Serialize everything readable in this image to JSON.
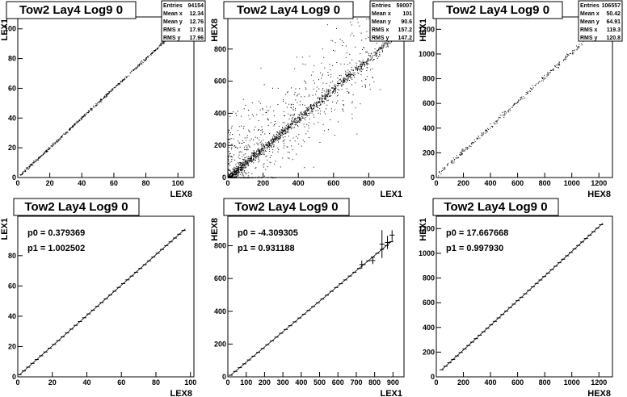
{
  "chart_data": [
    {
      "type": "scatter",
      "title": "Tow2 Lay4 Log9 0",
      "xlabel": "LEX8",
      "ylabel": "LEX1",
      "xlim": [
        0,
        110
      ],
      "ylim": [
        0,
        108
      ],
      "xticks": [
        0,
        20,
        40,
        60,
        80,
        100
      ],
      "yticks": [
        0,
        20,
        40,
        60,
        80,
        100
      ],
      "stats": [
        [
          "Entries",
          "94154"
        ],
        [
          "Mean x",
          "12.34"
        ],
        [
          "Mean y",
          "12.76"
        ],
        [
          "RMS x",
          "17.91"
        ],
        [
          "RMS y",
          "17.96"
        ]
      ],
      "trend": {
        "slope": 1.0,
        "intercept": 0.4,
        "x_min": 0,
        "x_max": 97,
        "spread": 0.5,
        "n": 500,
        "outliers": 0
      }
    },
    {
      "type": "scatter",
      "title": "Tow2 Lay4 Log9 0",
      "xlabel": "LEX1",
      "ylabel": "HEX8",
      "xlim": [
        0,
        1000
      ],
      "ylim": [
        0,
        1000
      ],
      "xticks": [
        0,
        200,
        400,
        600,
        800
      ],
      "yticks": [
        0,
        200,
        400,
        600,
        800
      ],
      "stats": [
        [
          "Entries",
          "59007"
        ],
        [
          "Mean x",
          "101"
        ],
        [
          "Mean y",
          "90.6"
        ],
        [
          "RMS x",
          "157.2"
        ],
        [
          "RMS y",
          "147.2"
        ]
      ],
      "trend": {
        "slope": 0.93,
        "intercept": -4,
        "x_min": 0,
        "x_max": 930,
        "spread": 15,
        "n": 1200,
        "outliers": 700
      }
    },
    {
      "type": "scatter",
      "title": "Tow2 Lay4 Log9 0",
      "xlabel": "HEX8",
      "ylabel": "HEX1",
      "xlim": [
        0,
        1300
      ],
      "ylim": [
        0,
        1300
      ],
      "xticks": [
        0,
        200,
        400,
        600,
        800,
        1000,
        1200
      ],
      "yticks": [
        0,
        200,
        400,
        600,
        800,
        1000,
        1200
      ],
      "stats": [
        [
          "Entries",
          "106557"
        ],
        [
          "Mean x",
          "50.42"
        ],
        [
          "Mean y",
          "64.91"
        ],
        [
          "RMS x",
          "119.3"
        ],
        [
          "RMS y",
          "120.8"
        ]
      ],
      "trend": {
        "slope": 1.0,
        "intercept": 18,
        "x_min": 10,
        "x_max": 1100,
        "spread": 10,
        "n": 260,
        "outliers": 0
      }
    },
    {
      "type": "line",
      "title": "Tow2 Lay4 Log9 0",
      "xlabel": "LEX8",
      "ylabel": "LEX1",
      "xlim": [
        0,
        102
      ],
      "ylim": [
        0,
        106
      ],
      "xticks": [
        0,
        20,
        40,
        60,
        80,
        100
      ],
      "yticks": [
        0,
        20,
        40,
        60,
        80
      ],
      "fit": {
        "p0_label": "p0 = 0.379369",
        "p1_label": "p1 = 1.002502",
        "p0": 0.379369,
        "p1": 1.002502
      },
      "profile": {
        "x_min": 1,
        "x_max": 97,
        "step": 2.5
      },
      "errors": []
    },
    {
      "type": "line",
      "title": "Tow2 Lay4 Log9 0",
      "xlabel": "LEX1",
      "ylabel": "HEX8",
      "xlim": [
        0,
        960
      ],
      "ylim": [
        0,
        980
      ],
      "xticks": [
        0,
        100,
        200,
        300,
        400,
        500,
        600,
        700,
        800,
        900
      ],
      "yticks": [
        0,
        200,
        400,
        600,
        800
      ],
      "fit": {
        "p0_label": "p0 = -4.309305",
        "p1_label": "p1 = 0.931188",
        "p0": -4.309305,
        "p1": 0.931188
      },
      "profile": {
        "x_min": 15,
        "x_max": 900,
        "step": 25
      },
      "errors": [
        {
          "x": 730,
          "y": 685,
          "e": 25
        },
        {
          "x": 790,
          "y": 710,
          "e": 22
        },
        {
          "x": 840,
          "y": 810,
          "e": 85
        },
        {
          "x": 870,
          "y": 820,
          "e": 40
        },
        {
          "x": 895,
          "y": 865,
          "e": 30
        }
      ]
    },
    {
      "type": "line",
      "title": "Tow2 Lay4 Log9 0",
      "xlabel": "HEX8",
      "ylabel": "HEX1",
      "xlim": [
        0,
        1300
      ],
      "ylim": [
        0,
        1300
      ],
      "xticks": [
        0,
        200,
        400,
        600,
        800,
        1000,
        1200
      ],
      "yticks": [
        0,
        200,
        400,
        600,
        800,
        1000,
        1200
      ],
      "fit": {
        "p0_label": "p0 = 17.667668",
        "p1_label": "p1 = 0.997930",
        "p0": 17.667668,
        "p1": 0.99793
      },
      "profile": {
        "x_min": 40,
        "x_max": 1230,
        "step": 28
      },
      "errors": []
    }
  ]
}
